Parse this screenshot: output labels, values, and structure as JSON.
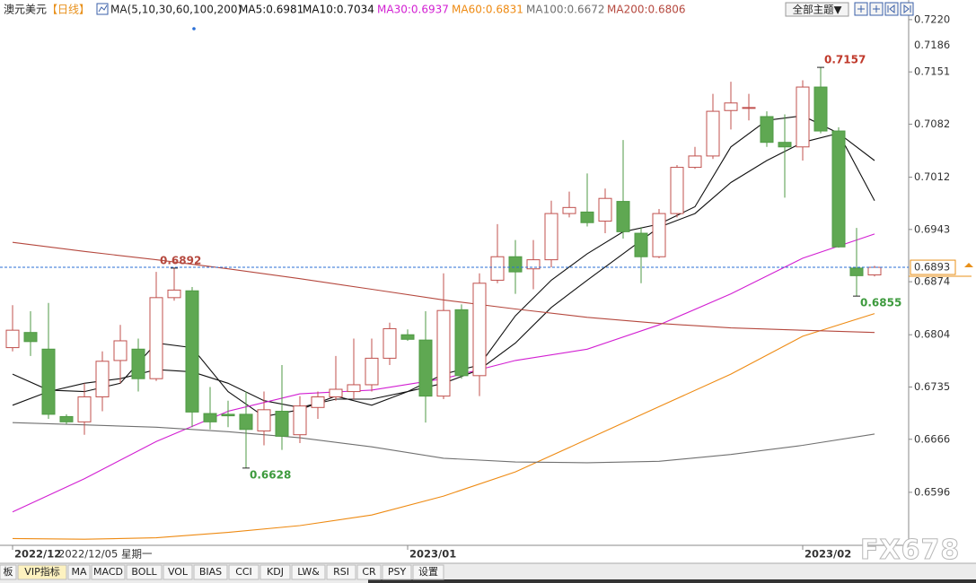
{
  "chart_data": {
    "type": "candlestick",
    "title": "澳元美元",
    "period": "【日线】",
    "indicator": "MA(5,10,30,60,100,200)",
    "xlim": [
      -0.7,
      49.9
    ],
    "ylim": [
      0.6526,
      0.724
    ],
    "yticks": [
      {
        "value": 0.722,
        "label": "0.7220"
      },
      0.7151,
      0.7082,
      0.7012,
      0.6943,
      0.6874,
      0.6804,
      0.6735,
      0.6666,
      0.6596
    ],
    "xticks": [
      {
        "value": 0,
        "label": "2022/12"
      },
      {
        "value": 22,
        "label": "2023/01"
      },
      {
        "value": 44,
        "label": "2023/02"
      }
    ],
    "cursor_label": "2022/12/05 星期一",
    "up_color": "#c0504d",
    "down_color": "#5fa852",
    "candles": {
      "open": [
        0.6787,
        0.6807,
        0.6785,
        0.6696,
        0.6689,
        0.6722,
        0.677,
        0.6785,
        0.6746,
        0.6853,
        0.6862,
        0.67,
        0.6699,
        0.6699,
        0.6677,
        0.6703,
        0.6672,
        0.6708,
        0.6722,
        0.6729,
        0.6738,
        0.6773,
        0.6804,
        0.6797,
        0.6723,
        0.6837,
        0.675,
        0.6876,
        0.6907,
        0.6891,
        0.6903,
        0.6964,
        0.6966,
        0.6954,
        0.698,
        0.6938,
        0.6907,
        0.6964,
        0.7025,
        0.704,
        0.71,
        0.7103,
        0.7092,
        0.7058,
        0.7052,
        0.7131,
        0.7073,
        0.6892,
        0.6883
      ],
      "high": [
        0.6843,
        0.6835,
        0.6846,
        0.6699,
        0.674,
        0.6782,
        0.6817,
        0.6799,
        0.6887,
        0.6892,
        0.6867,
        0.6735,
        0.6717,
        0.6729,
        0.6729,
        0.6764,
        0.6723,
        0.6729,
        0.6776,
        0.6799,
        0.6799,
        0.682,
        0.6811,
        0.6835,
        0.6885,
        0.6844,
        0.6885,
        0.695,
        0.6929,
        0.6929,
        0.6981,
        0.6993,
        0.7017,
        0.6997,
        0.7061,
        0.6946,
        0.697,
        0.7028,
        0.7052,
        0.7122,
        0.7138,
        0.7122,
        0.7099,
        0.7095,
        0.714,
        0.7157,
        0.7078,
        0.6945,
        0.6895
      ],
      "low": [
        0.6782,
        0.6776,
        0.6693,
        0.6686,
        0.6672,
        0.6703,
        0.674,
        0.6729,
        0.6743,
        0.6849,
        0.6682,
        0.6679,
        0.6682,
        0.6628,
        0.6658,
        0.6652,
        0.6661,
        0.6693,
        0.6717,
        0.6719,
        0.6729,
        0.6764,
        0.6796,
        0.6688,
        0.6719,
        0.6746,
        0.6723,
        0.6872,
        0.6858,
        0.6864,
        0.6893,
        0.6959,
        0.6947,
        0.6938,
        0.6931,
        0.6872,
        0.6905,
        0.6959,
        0.7023,
        0.7036,
        0.7075,
        0.7087,
        0.7052,
        0.6985,
        0.7034,
        0.707,
        0.6919,
        0.6855,
        0.6881
      ],
      "close": [
        0.681,
        0.6795,
        0.6699,
        0.6689,
        0.6722,
        0.6769,
        0.6796,
        0.6746,
        0.6853,
        0.6863,
        0.6702,
        0.6689,
        0.6697,
        0.6679,
        0.6705,
        0.667,
        0.671,
        0.6722,
        0.6732,
        0.6738,
        0.6773,
        0.6812,
        0.6798,
        0.6723,
        0.6836,
        0.675,
        0.6872,
        0.6907,
        0.6887,
        0.6903,
        0.6964,
        0.6972,
        0.6952,
        0.6984,
        0.694,
        0.6907,
        0.6964,
        0.7025,
        0.704,
        0.7099,
        0.711,
        0.7104,
        0.7058,
        0.7052,
        0.7131,
        0.7073,
        0.692,
        0.6882,
        0.6893
      ]
    },
    "series": [
      {
        "name": "MA5:0.6981",
        "color": "#111111",
        "x": [
          0,
          2,
          4,
          6,
          8,
          10,
          12,
          14,
          16,
          18,
          20,
          22,
          24,
          26,
          28,
          30,
          32,
          34,
          36,
          38,
          40,
          42,
          44,
          46,
          48
        ],
        "values": [
          0.6752,
          0.6731,
          0.6729,
          0.674,
          0.6793,
          0.6787,
          0.6729,
          0.6696,
          0.6705,
          0.6723,
          0.6711,
          0.6729,
          0.6752,
          0.6764,
          0.6829,
          0.6876,
          0.6911,
          0.694,
          0.695,
          0.6973,
          0.7052,
          0.7087,
          0.7093,
          0.707,
          0.6981
        ]
      },
      {
        "name": "MA10:0.7034",
        "color": "#111111",
        "x": [
          0,
          2,
          4,
          6,
          8,
          10,
          12,
          14,
          16,
          18,
          20,
          22,
          24,
          26,
          28,
          30,
          32,
          34,
          36,
          38,
          40,
          42,
          44,
          46,
          48
        ],
        "values": [
          0.6711,
          0.6729,
          0.674,
          0.6746,
          0.6758,
          0.6755,
          0.674,
          0.6717,
          0.6708,
          0.6719,
          0.6719,
          0.6729,
          0.674,
          0.6758,
          0.6793,
          0.684,
          0.6876,
          0.6911,
          0.6946,
          0.6964,
          0.7005,
          0.7034,
          0.7058,
          0.707,
          0.7034
        ]
      },
      {
        "name": "MA30:0.6937",
        "color": "#d21fd2",
        "x": [
          0,
          4,
          8,
          12,
          16,
          20,
          24,
          28,
          32,
          36,
          40,
          44,
          48
        ],
        "values": [
          0.657,
          0.6614,
          0.6663,
          0.6703,
          0.6726,
          0.6731,
          0.6746,
          0.677,
          0.6785,
          0.6817,
          0.6858,
          0.6905,
          0.6937
        ]
      },
      {
        "name": "MA60:0.6831",
        "color": "#ee8a12",
        "x": [
          0,
          4,
          8,
          12,
          16,
          20,
          24,
          28,
          32,
          36,
          40,
          44,
          48
        ],
        "values": [
          0.6535,
          0.6534,
          0.6536,
          0.6543,
          0.6552,
          0.6566,
          0.6591,
          0.6623,
          0.6666,
          0.6709,
          0.6752,
          0.6802,
          0.6832
        ]
      },
      {
        "name": "MA100:0.6672",
        "color": "#707070",
        "x": [
          0,
          4,
          8,
          12,
          16,
          20,
          24,
          28,
          32,
          36,
          40,
          44,
          48
        ],
        "values": [
          0.6688,
          0.6685,
          0.6682,
          0.6676,
          0.6668,
          0.6656,
          0.6641,
          0.6636,
          0.6635,
          0.6637,
          0.6646,
          0.6658,
          0.6673
        ]
      },
      {
        "name": "MA200:0.6806",
        "color": "#b5483e",
        "x": [
          0,
          4,
          8,
          12,
          16,
          20,
          24,
          28,
          32,
          36,
          40,
          44,
          48
        ],
        "values": [
          0.6926,
          0.6914,
          0.6903,
          0.6891,
          0.6878,
          0.6864,
          0.685,
          0.6838,
          0.6827,
          0.6819,
          0.6813,
          0.681,
          0.6807
        ]
      }
    ],
    "extreme_labels": [
      {
        "x": 9,
        "value": 0.6892,
        "color": "#b5483e"
      },
      {
        "x": 13,
        "value": 0.6628,
        "color": "#3d9a3d"
      },
      {
        "x": 45,
        "value": 0.7157,
        "color": "#c0392b"
      },
      {
        "x": 47,
        "value": 0.6855,
        "color": "#3d9a3d"
      }
    ],
    "current": {
      "value": 0.6893,
      "color": "#e8901a",
      "line_color": "#2a6fd6"
    },
    "reference": {
      "value": 0.7186,
      "color": "#e8901a"
    }
  },
  "ui": {
    "theme_button": "全部主题▼",
    "tabs": [
      "板",
      "VIP指标",
      "MA",
      "MACD",
      "BOLL",
      "VOL",
      "BIAS",
      "CCI",
      "KDJ",
      "LW&",
      "RSI",
      "CR",
      "PSY",
      "设置"
    ],
    "watermark": "FX678"
  }
}
